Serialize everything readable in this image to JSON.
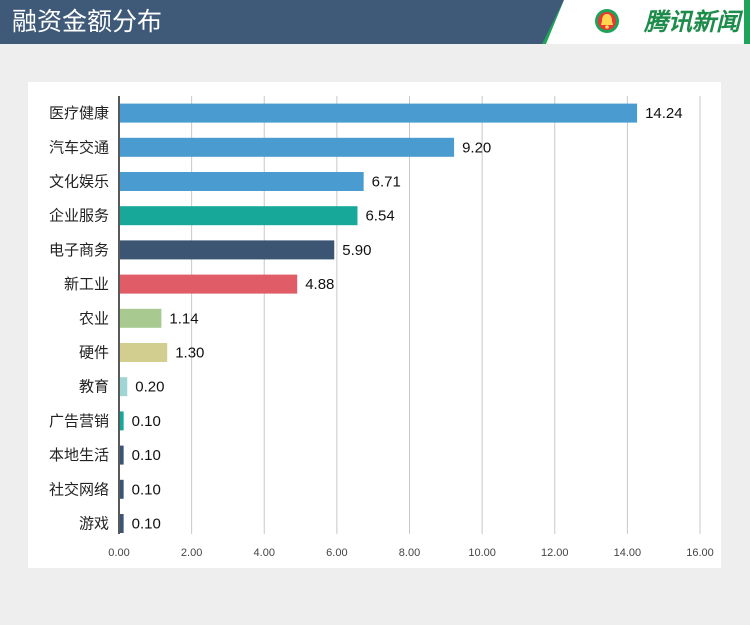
{
  "header": {
    "title": "融资金额分布",
    "brand": "腾讯新闻",
    "brand_logo": "tencent-news-bell-logo"
  },
  "chart_data": {
    "type": "bar",
    "orientation": "horizontal",
    "categories": [
      "医疗健康",
      "汽车交通",
      "文化娱乐",
      "企业服务",
      "电子商务",
      "新工业",
      "农业",
      "硬件",
      "教育",
      "广告营销",
      "本地生活",
      "社交网络",
      "游戏"
    ],
    "values": [
      14.24,
      9.2,
      6.71,
      6.54,
      5.9,
      4.88,
      1.14,
      1.3,
      0.2,
      0.1,
      0.1,
      0.1,
      0.1
    ],
    "value_labels": [
      "14.24",
      "9.20",
      "6.71",
      "6.54",
      "5.90",
      "4.88",
      "1.14",
      "1.30",
      "0.20",
      "0.10",
      "0.10",
      "0.10",
      "0.10"
    ],
    "colors": [
      "#4a9bd0",
      "#4a9bd0",
      "#4a9bd0",
      "#17a899",
      "#3b5573",
      "#e05c66",
      "#a8c98f",
      "#d2ce8f",
      "#9fd6d3",
      "#17a899",
      "#3b5573",
      "#3b5573",
      "#3b5573"
    ],
    "xlim": [
      0,
      16
    ],
    "x_ticks": [
      0,
      2,
      4,
      6,
      8,
      10,
      12,
      14,
      16
    ],
    "x_tick_labels": [
      "0.00",
      "2.00",
      "4.00",
      "6.00",
      "8.00",
      "10.00",
      "12.00",
      "14.00",
      "16.00"
    ],
    "grid": true,
    "title": "",
    "xlabel": "",
    "ylabel": ""
  },
  "colors": {
    "header_bg": "#3f5a79",
    "page_bg": "#eeeeee",
    "brand_green": "#1fa35a"
  }
}
